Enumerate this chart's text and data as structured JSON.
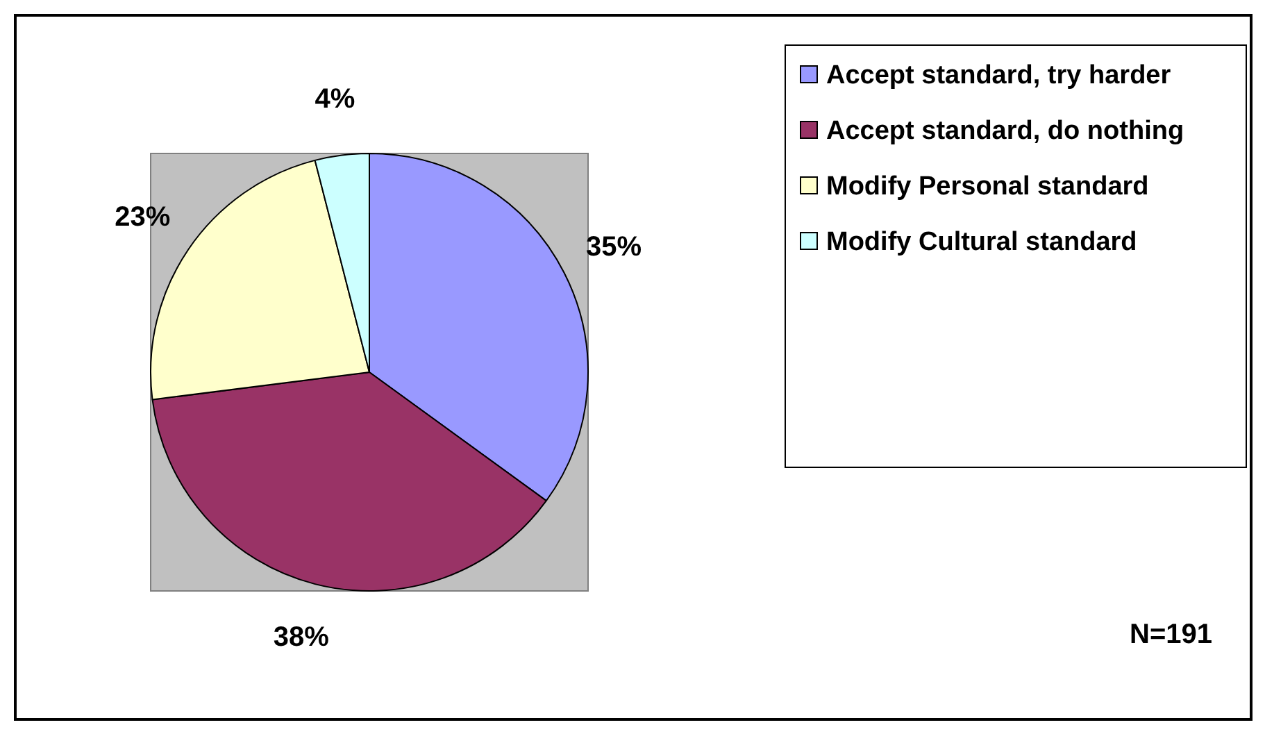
{
  "chart_data": {
    "type": "pie",
    "categories": [
      "Accept standard, try harder",
      "Accept standard, do nothing",
      "Modify Personal standard",
      "Modify Cultural standard"
    ],
    "values": [
      35,
      38,
      23,
      4
    ],
    "colors": [
      "#9999ff",
      "#993366",
      "#ffffcc",
      "#ccffff"
    ],
    "value_labels": [
      "35%",
      "38%",
      "23%",
      "4%"
    ],
    "legend": "right",
    "annotations": [
      "N=191"
    ]
  }
}
